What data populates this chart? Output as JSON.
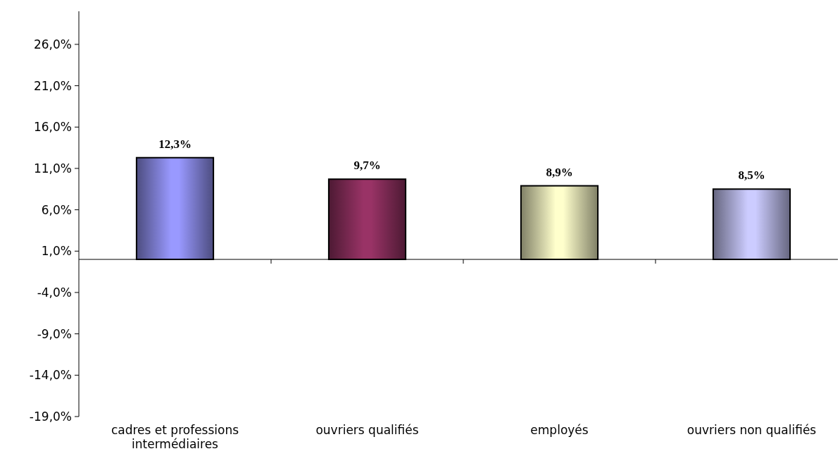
{
  "chart_data": {
    "type": "bar",
    "categories": [
      "cadres et professions intermédiaires",
      "ouvriers qualifiés",
      "employés",
      "ouvriers non qualifiés"
    ],
    "values": [
      12.3,
      9.7,
      8.9,
      8.5
    ],
    "colors": [
      "#9999ff",
      "#993366",
      "#ffffcc",
      "#ccccff"
    ],
    "value_labels": [
      "12,3%",
      "9,7%",
      "8,9%",
      "8,5%"
    ],
    "ylim": [
      -19,
      30
    ],
    "yticks": [
      {
        "value": -19,
        "label": "-19,0%"
      },
      {
        "value": -14,
        "label": "-14,0%"
      },
      {
        "value": -9,
        "label": "-9,0%"
      },
      {
        "value": -4,
        "label": "-4,0%"
      },
      {
        "value": 1,
        "label": "1,0%"
      },
      {
        "value": 6,
        "label": "6,0%"
      },
      {
        "value": 11,
        "label": "11,0%"
      },
      {
        "value": 16,
        "label": "16,0%"
      },
      {
        "value": 21,
        "label": "21,0%"
      },
      {
        "value": 26,
        "label": "26,0%"
      }
    ],
    "grid": false
  }
}
